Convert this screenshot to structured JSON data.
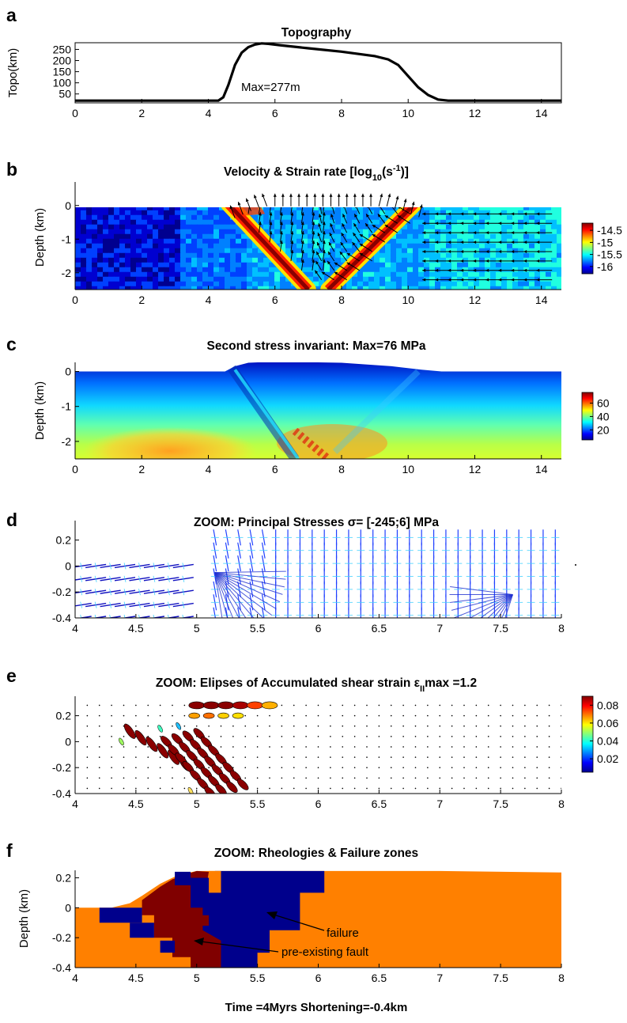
{
  "footer": "Time =4Myrs  Shortening=-0.4km",
  "chart_data": [
    {
      "panel": "a",
      "type": "line",
      "title": "Topography",
      "ylabel": "Topo(km)",
      "xlabel": "",
      "xlim": [
        0,
        14.6
      ],
      "ylim": [
        10,
        280
      ],
      "xticks": [
        0,
        2,
        4,
        6,
        8,
        10,
        12,
        14
      ],
      "yticks": [
        50,
        100,
        150,
        200,
        250
      ],
      "annotation": "Max=277m",
      "series": [
        {
          "x": [
            0,
            4.3,
            4.45,
            4.6,
            4.8,
            5.0,
            5.2,
            5.4,
            5.6,
            5.8,
            6.2,
            7,
            8,
            9,
            9.4,
            9.7,
            10.0,
            10.3,
            10.6,
            10.9,
            11.2,
            14.6
          ],
          "y": [
            20,
            20,
            35,
            90,
            180,
            235,
            260,
            272,
            277,
            275,
            268,
            255,
            240,
            220,
            205,
            180,
            130,
            80,
            45,
            25,
            20,
            20
          ]
        }
      ]
    },
    {
      "panel": "b",
      "type": "heatmap",
      "title": "Velocity & Strain rate [log",
      "title_sub": "10",
      "title_unit": "(s",
      "title_sup": "-1",
      "title_end": ")]",
      "ylabel": "Depth (km)",
      "xlim": [
        0,
        14.6
      ],
      "ylim": [
        -2.5,
        0.7
      ],
      "xticks": [
        0,
        2,
        4,
        6,
        8,
        10,
        12,
        14
      ],
      "yticks": [
        0,
        -1,
        -2
      ],
      "colorbar": {
        "ticks": [
          -14.5,
          -15,
          -15.5,
          -16
        ],
        "range": [
          -16.3,
          -14.2
        ]
      },
      "faults": [
        {
          "x": [
            4.6,
            7.0
          ],
          "y": [
            0.05,
            -2.5
          ]
        },
        {
          "x": [
            10.2,
            7.6
          ],
          "y": [
            0.05,
            -2.5
          ]
        }
      ]
    },
    {
      "panel": "c",
      "type": "heatmap",
      "title": "Second stress invariant: Max=76 MPa",
      "ylabel": "Depth (km)",
      "xlim": [
        0,
        14.6
      ],
      "ylim": [
        -2.5,
        0.6
      ],
      "xticks": [
        0,
        2,
        4,
        6,
        8,
        10,
        12,
        14
      ],
      "yticks": [
        0,
        -1,
        -2
      ],
      "colorbar": {
        "ticks": [
          60,
          40,
          20
        ],
        "range": [
          5,
          76
        ]
      }
    },
    {
      "panel": "d",
      "type": "scatter",
      "title": "ZOOM: Principal Stresses  σ= [-245;6] MPa",
      "xlim": [
        4,
        8
      ],
      "ylim": [
        -0.4,
        0.35
      ],
      "xticks": [
        4,
        4.5,
        5,
        5.5,
        6,
        6.5,
        7,
        7.5,
        8
      ],
      "yticks": [
        0.2,
        0,
        -0.2,
        -0.4
      ],
      "ytick_labels": [
        "0.2",
        "0",
        "-0.2",
        "-0.4"
      ]
    },
    {
      "panel": "e",
      "type": "scatter",
      "title": "ZOOM: Elipses of Accumulated shear strain ε",
      "title_sub": "II",
      "title_end": "max =1.2",
      "xlim": [
        4,
        8
      ],
      "ylim": [
        -0.4,
        0.35
      ],
      "xticks": [
        4,
        4.5,
        5,
        5.5,
        6,
        6.5,
        7,
        7.5,
        8
      ],
      "yticks": [
        0.2,
        0,
        -0.2,
        -0.4
      ],
      "ytick_labels": [
        "0.2",
        "0",
        "-0.2",
        "-0.4"
      ],
      "colorbar": {
        "ticks": [
          0.08,
          0.06,
          0.04,
          0.02
        ],
        "range": [
          0.005,
          0.09
        ]
      }
    },
    {
      "panel": "f",
      "type": "area",
      "title": "ZOOM: Rheologies & Failure zones",
      "ylabel": "Depth (km)",
      "xlim": [
        4,
        8
      ],
      "ylim": [
        -0.4,
        0.25
      ],
      "xticks": [
        4,
        4.5,
        5,
        5.5,
        6,
        6.5,
        7,
        7.5,
        8
      ],
      "yticks": [
        0.2,
        0,
        -0.2,
        -0.4
      ],
      "ytick_labels": [
        "0.2",
        "0",
        "-0.2",
        "-0.4"
      ],
      "annotations": [
        "failure",
        "pre-existing fault"
      ],
      "colors": {
        "host": "#ff8000",
        "failure": "#00008c",
        "fault": "#800000"
      }
    }
  ]
}
